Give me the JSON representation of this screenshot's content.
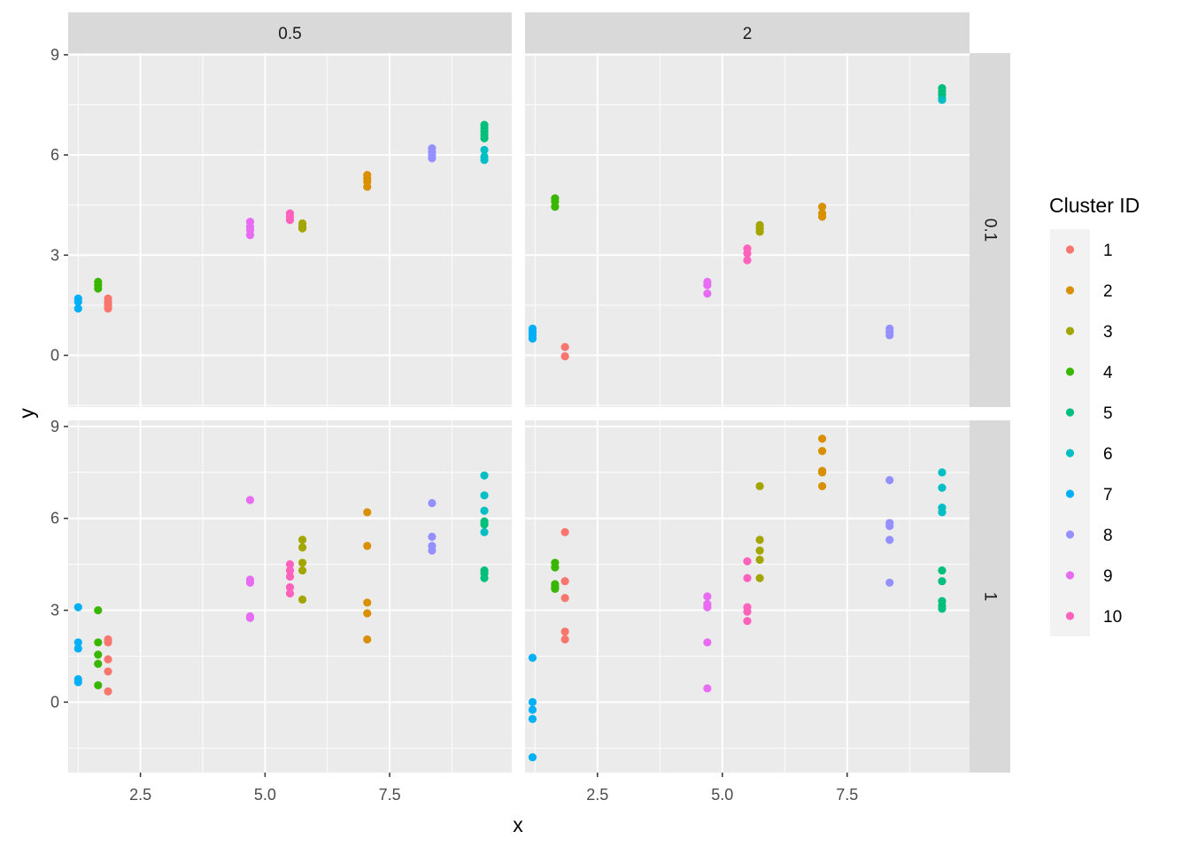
{
  "chart_data": {
    "type": "scatter",
    "xlabel": "x",
    "ylabel": "y",
    "xlim": [
      1.05,
      9.95
    ],
    "x_ticks": [
      2.5,
      5.0,
      7.5
    ],
    "x_tick_labels": [
      "2.5",
      "5.0",
      "7.5"
    ],
    "rows": [
      {
        "label": "0.1",
        "ylim": [
          -1.55,
          9.05
        ],
        "y_ticks": [
          0,
          3,
          6,
          9
        ],
        "y_tick_labels": [
          "0",
          "3",
          "6",
          "9"
        ]
      },
      {
        "label": "1",
        "ylim": [
          -2.3,
          9.2
        ],
        "y_ticks": [
          0,
          3,
          6,
          9
        ],
        "y_tick_labels": [
          "0",
          "3",
          "6",
          "9"
        ]
      }
    ],
    "columns": [
      {
        "label": "0.5"
      },
      {
        "label": "2"
      }
    ],
    "grid": true,
    "legend": {
      "title": "Cluster ID",
      "position": "right",
      "entries": [
        "1",
        "2",
        "3",
        "4",
        "5",
        "6",
        "7",
        "8",
        "9",
        "10"
      ],
      "colors": [
        "#F8766D",
        "#D89000",
        "#A3A500",
        "#39B600",
        "#00BF7D",
        "#00BFC4",
        "#00B0F6",
        "#9590FF",
        "#E76BF3",
        "#FF62BC"
      ]
    },
    "panels": [
      {
        "row": 0,
        "col": 0,
        "series": [
          {
            "name": "1",
            "points": [
              [
                1.85,
                1.7
              ],
              [
                1.85,
                1.6
              ],
              [
                1.85,
                1.5
              ],
              [
                1.85,
                1.4
              ]
            ]
          },
          {
            "name": "2",
            "points": [
              [
                7.05,
                5.4
              ],
              [
                7.05,
                5.3
              ],
              [
                7.05,
                5.2
              ],
              [
                7.05,
                5.05
              ]
            ]
          },
          {
            "name": "3",
            "points": [
              [
                5.75,
                3.95
              ],
              [
                5.75,
                3.85
              ],
              [
                5.75,
                3.8
              ]
            ]
          },
          {
            "name": "4",
            "points": [
              [
                1.65,
                2.2
              ],
              [
                1.65,
                2.1
              ],
              [
                1.65,
                2.0
              ]
            ]
          },
          {
            "name": "5",
            "points": [
              [
                9.4,
                6.9
              ],
              [
                9.4,
                6.8
              ],
              [
                9.4,
                6.7
              ],
              [
                9.4,
                6.6
              ],
              [
                9.4,
                6.5
              ]
            ]
          },
          {
            "name": "6",
            "points": [
              [
                9.4,
                6.15
              ],
              [
                9.4,
                5.95
              ],
              [
                9.4,
                5.85
              ]
            ]
          },
          {
            "name": "7",
            "points": [
              [
                1.25,
                1.7
              ],
              [
                1.25,
                1.6
              ],
              [
                1.25,
                1.4
              ]
            ]
          },
          {
            "name": "8",
            "points": [
              [
                8.35,
                6.2
              ],
              [
                8.35,
                6.1
              ],
              [
                8.35,
                6.0
              ],
              [
                8.35,
                5.9
              ]
            ]
          },
          {
            "name": "9",
            "points": [
              [
                4.7,
                4.0
              ],
              [
                4.7,
                3.85
              ],
              [
                4.7,
                3.75
              ],
              [
                4.7,
                3.6
              ]
            ]
          },
          {
            "name": "10",
            "points": [
              [
                5.5,
                4.25
              ],
              [
                5.5,
                4.15
              ],
              [
                5.5,
                4.05
              ]
            ]
          }
        ]
      },
      {
        "row": 0,
        "col": 1,
        "series": [
          {
            "name": "1",
            "points": [
              [
                1.85,
                0.25
              ],
              [
                1.85,
                -0.03
              ]
            ]
          },
          {
            "name": "2",
            "points": [
              [
                7.0,
                4.45
              ],
              [
                7.0,
                4.25
              ],
              [
                7.0,
                4.15
              ]
            ]
          },
          {
            "name": "3",
            "points": [
              [
                5.75,
                3.9
              ],
              [
                5.75,
                3.8
              ],
              [
                5.75,
                3.7
              ]
            ]
          },
          {
            "name": "4",
            "points": [
              [
                1.65,
                4.7
              ],
              [
                1.65,
                4.6
              ],
              [
                1.65,
                4.45
              ]
            ]
          },
          {
            "name": "5",
            "points": [
              [
                9.4,
                8.0
              ],
              [
                9.4,
                7.9
              ],
              [
                9.4,
                7.8
              ],
              [
                9.4,
                7.7
              ]
            ]
          },
          {
            "name": "6",
            "points": [
              [
                9.4,
                7.65
              ]
            ]
          },
          {
            "name": "7",
            "points": [
              [
                1.2,
                0.8
              ],
              [
                1.2,
                0.7
              ],
              [
                1.2,
                0.6
              ],
              [
                1.2,
                0.5
              ]
            ]
          },
          {
            "name": "8",
            "points": [
              [
                8.35,
                0.8
              ],
              [
                8.35,
                0.7
              ],
              [
                8.35,
                0.6
              ]
            ]
          },
          {
            "name": "9",
            "points": [
              [
                4.7,
                2.2
              ],
              [
                4.7,
                2.1
              ],
              [
                4.7,
                1.85
              ]
            ]
          },
          {
            "name": "10",
            "points": [
              [
                5.5,
                3.2
              ],
              [
                5.5,
                3.05
              ],
              [
                5.5,
                2.85
              ]
            ]
          }
        ]
      },
      {
        "row": 1,
        "col": 0,
        "series": [
          {
            "name": "1",
            "points": [
              [
                1.85,
                2.05
              ],
              [
                1.85,
                1.95
              ],
              [
                1.85,
                1.4
              ],
              [
                1.85,
                1.0
              ],
              [
                1.85,
                0.35
              ]
            ]
          },
          {
            "name": "2",
            "points": [
              [
                7.05,
                6.2
              ],
              [
                7.05,
                5.1
              ],
              [
                7.05,
                3.25
              ],
              [
                7.05,
                2.9
              ],
              [
                7.05,
                2.05
              ]
            ]
          },
          {
            "name": "3",
            "points": [
              [
                5.75,
                5.3
              ],
              [
                5.75,
                5.05
              ],
              [
                5.75,
                4.55
              ],
              [
                5.75,
                4.3
              ],
              [
                5.75,
                3.35
              ]
            ]
          },
          {
            "name": "4",
            "points": [
              [
                1.65,
                3.0
              ],
              [
                1.65,
                1.95
              ],
              [
                1.65,
                1.55
              ],
              [
                1.65,
                1.25
              ],
              [
                1.65,
                0.55
              ]
            ]
          },
          {
            "name": "5",
            "points": [
              [
                9.4,
                5.9
              ],
              [
                9.4,
                5.8
              ],
              [
                9.4,
                4.3
              ],
              [
                9.4,
                4.2
              ],
              [
                9.4,
                4.05
              ]
            ]
          },
          {
            "name": "6",
            "points": [
              [
                9.4,
                7.4
              ],
              [
                9.4,
                6.75
              ],
              [
                9.4,
                6.25
              ],
              [
                9.4,
                5.55
              ]
            ]
          },
          {
            "name": "7",
            "points": [
              [
                1.25,
                3.1
              ],
              [
                1.25,
                1.95
              ],
              [
                1.25,
                1.75
              ],
              [
                1.25,
                0.75
              ],
              [
                1.25,
                0.65
              ]
            ]
          },
          {
            "name": "8",
            "points": [
              [
                8.35,
                6.5
              ],
              [
                8.35,
                5.4
              ],
              [
                8.35,
                5.1
              ],
              [
                8.35,
                4.95
              ]
            ]
          },
          {
            "name": "9",
            "points": [
              [
                4.7,
                6.6
              ],
              [
                4.7,
                4.0
              ],
              [
                4.7,
                3.9
              ],
              [
                4.7,
                2.8
              ],
              [
                4.7,
                2.75
              ]
            ]
          },
          {
            "name": "10",
            "points": [
              [
                5.5,
                4.5
              ],
              [
                5.5,
                4.3
              ],
              [
                5.5,
                4.1
              ],
              [
                5.5,
                3.75
              ],
              [
                5.5,
                3.55
              ]
            ]
          }
        ]
      },
      {
        "row": 1,
        "col": 1,
        "series": [
          {
            "name": "1",
            "points": [
              [
                1.85,
                5.55
              ],
              [
                1.85,
                3.95
              ],
              [
                1.85,
                3.4
              ],
              [
                1.85,
                2.3
              ],
              [
                1.85,
                2.05
              ]
            ]
          },
          {
            "name": "2",
            "points": [
              [
                7.0,
                8.6
              ],
              [
                7.0,
                8.2
              ],
              [
                7.0,
                7.55
              ],
              [
                7.0,
                7.5
              ],
              [
                7.0,
                7.05
              ]
            ]
          },
          {
            "name": "3",
            "points": [
              [
                5.75,
                7.05
              ],
              [
                5.75,
                5.3
              ],
              [
                5.75,
                4.95
              ],
              [
                5.75,
                4.65
              ],
              [
                5.75,
                4.05
              ]
            ]
          },
          {
            "name": "4",
            "points": [
              [
                1.65,
                4.55
              ],
              [
                1.65,
                4.4
              ],
              [
                1.65,
                3.85
              ],
              [
                1.65,
                3.75
              ],
              [
                1.65,
                3.7
              ]
            ]
          },
          {
            "name": "5",
            "points": [
              [
                9.4,
                4.3
              ],
              [
                9.4,
                3.95
              ],
              [
                9.4,
                3.3
              ],
              [
                9.4,
                3.15
              ],
              [
                9.4,
                3.05
              ]
            ]
          },
          {
            "name": "6",
            "points": [
              [
                9.4,
                7.5
              ],
              [
                9.4,
                7.0
              ],
              [
                9.4,
                6.35
              ],
              [
                9.4,
                6.2
              ]
            ]
          },
          {
            "name": "7",
            "points": [
              [
                1.2,
                1.45
              ],
              [
                1.2,
                0.0
              ],
              [
                1.2,
                -0.25
              ],
              [
                1.2,
                -0.55
              ],
              [
                1.2,
                -1.8
              ]
            ]
          },
          {
            "name": "8",
            "points": [
              [
                8.35,
                7.25
              ],
              [
                8.35,
                5.85
              ],
              [
                8.35,
                5.75
              ],
              [
                8.35,
                5.3
              ],
              [
                8.35,
                3.9
              ]
            ]
          },
          {
            "name": "9",
            "points": [
              [
                4.7,
                3.45
              ],
              [
                4.7,
                3.2
              ],
              [
                4.7,
                3.1
              ],
              [
                4.7,
                1.95
              ],
              [
                4.7,
                0.45
              ]
            ]
          },
          {
            "name": "10",
            "points": [
              [
                5.5,
                4.6
              ],
              [
                5.5,
                4.05
              ],
              [
                5.5,
                3.1
              ],
              [
                5.5,
                2.95
              ],
              [
                5.5,
                2.65
              ]
            ]
          }
        ]
      }
    ]
  }
}
